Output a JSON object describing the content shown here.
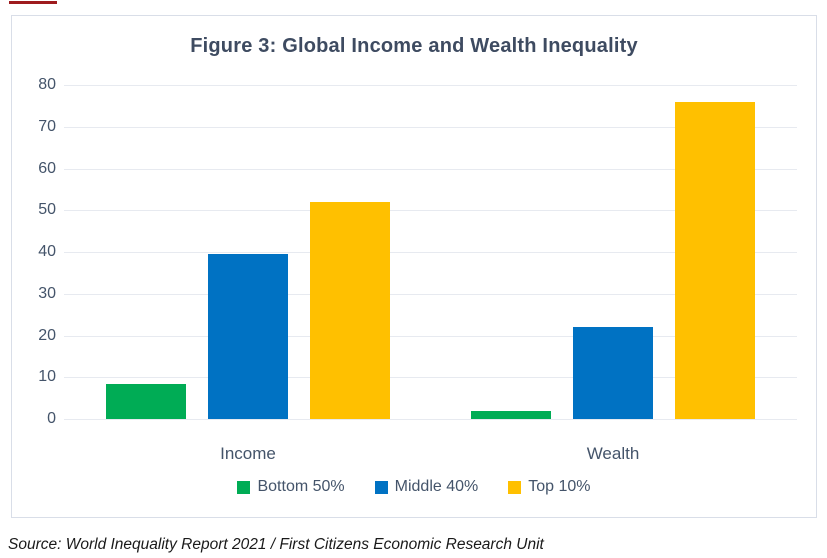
{
  "figure": {
    "source": "Source: World Inequality Report 2021 / First Citizens Economic Research Unit"
  },
  "chart_data": {
    "type": "bar",
    "title": "Figure 3: Global Income and Wealth Inequality",
    "categories": [
      "Income",
      "Wealth"
    ],
    "series": [
      {
        "name": "Bottom 50%",
        "color": "#00AC55",
        "values": [
          8.5,
          2
        ]
      },
      {
        "name": "Middle 40%",
        "color": "#0072C3",
        "values": [
          39.5,
          22
        ]
      },
      {
        "name": "Top 10%",
        "color": "#FFC000",
        "values": [
          52,
          76
        ]
      }
    ],
    "ylim": [
      0,
      80
    ],
    "yticks": [
      0,
      10,
      20,
      30,
      40,
      50,
      60,
      70,
      80
    ],
    "grid": true,
    "legend_position": "bottom"
  },
  "colors": {
    "accent_line": "#9E1B1E",
    "title_text": "#3E4B61",
    "axis_text": "#44546A",
    "gridline": "#E7EAF0",
    "box_border": "#D9DEE8",
    "source_text": "#1A1A1A"
  }
}
